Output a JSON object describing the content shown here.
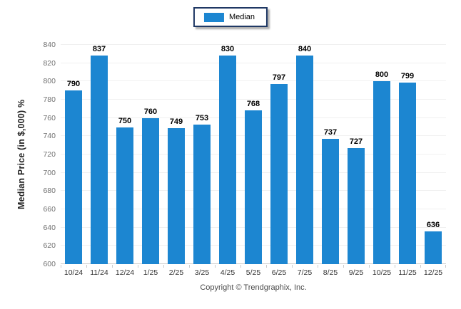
{
  "legend": {
    "label": "Median",
    "swatch_color": "#1c86d1"
  },
  "footer": {
    "copyright": "Copyright © Trendgraphix, Inc."
  },
  "chart_data": {
    "type": "bar",
    "title": "",
    "categories": [
      "10/24",
      "11/24",
      "12/24",
      "1/25",
      "2/25",
      "3/25",
      "4/25",
      "5/25",
      "6/25",
      "7/25",
      "8/25",
      "9/25",
      "10/25",
      "11/25",
      "12/25"
    ],
    "series": [
      {
        "name": "Median",
        "values": [
          790,
          837,
          750,
          760,
          749,
          753,
          830,
          768,
          797,
          840,
          737,
          727,
          800,
          799,
          636
        ]
      }
    ],
    "xlabel": "",
    "ylabel": "Median Price (in $,000) %",
    "ylim": [
      600,
      840
    ],
    "ytick_step": 20,
    "bar_color": "#1c86d1",
    "grid": true,
    "value_labels": true,
    "legend_position": "top-center"
  }
}
